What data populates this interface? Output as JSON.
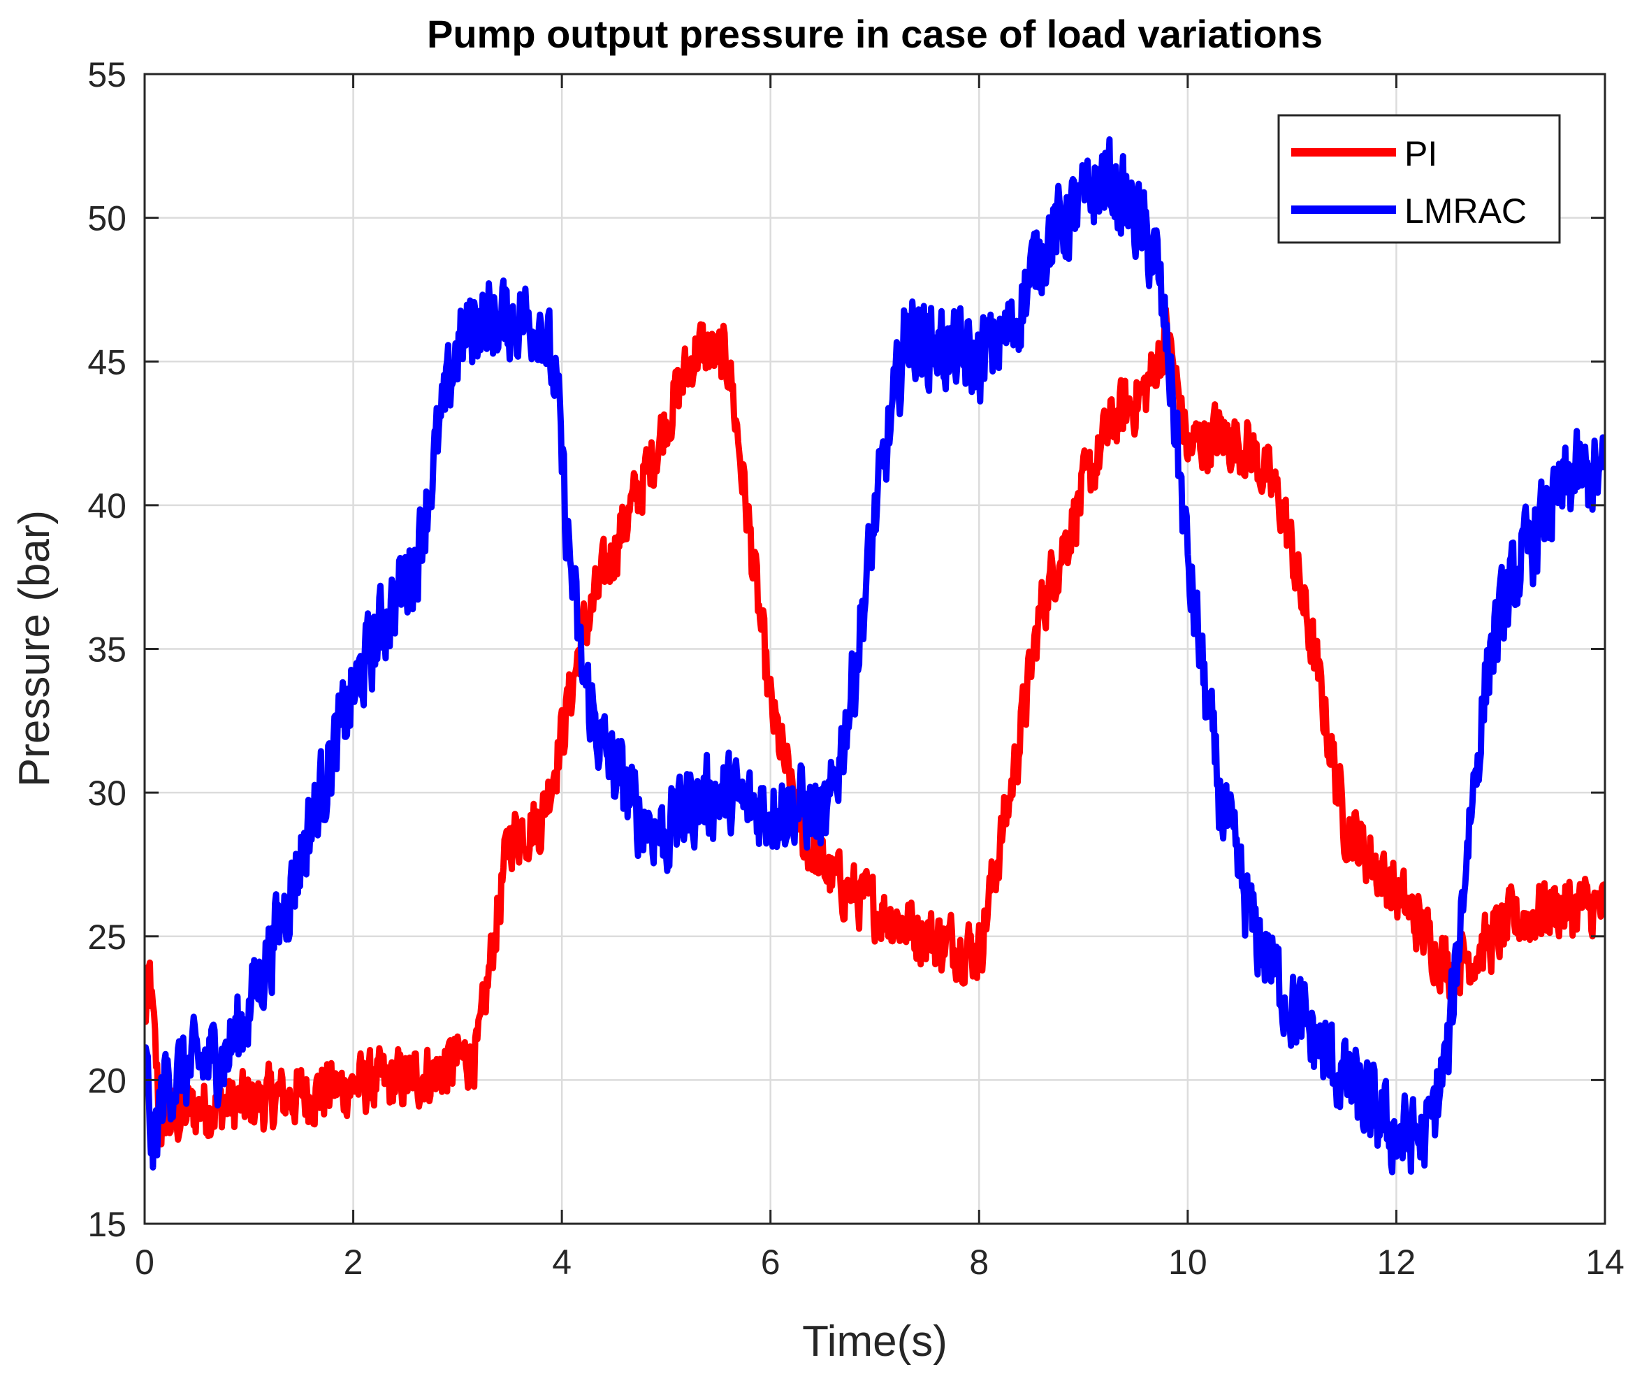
{
  "chart_data": {
    "type": "line",
    "title": "Pump output pressure in case of load variations",
    "xlabel": "Time(s)",
    "ylabel": "Pressure (bar)",
    "xlim": [
      0,
      14
    ],
    "ylim": [
      15,
      55
    ],
    "xticks": [
      0,
      2,
      4,
      6,
      8,
      10,
      12,
      14
    ],
    "yticks": [
      15,
      20,
      25,
      30,
      35,
      40,
      45,
      50,
      55
    ],
    "grid": true,
    "legend_position": "top-right",
    "series": [
      {
        "name": "PI",
        "color": "#ff0000",
        "noise_amplitude": 1.5,
        "x": [
          0,
          0.05,
          0.15,
          0.5,
          1.0,
          1.5,
          2.0,
          2.5,
          3.0,
          3.2,
          3.35,
          3.5,
          3.8,
          4.0,
          4.2,
          4.5,
          4.8,
          5.0,
          5.3,
          5.6,
          5.8,
          6.0,
          6.3,
          6.6,
          7.0,
          7.5,
          8.0,
          8.3,
          8.6,
          9.0,
          9.3,
          9.6,
          9.8,
          10.0,
          10.3,
          10.6,
          10.9,
          11.2,
          11.5,
          11.8,
          12.2,
          12.5,
          12.8,
          13.1,
          13.5,
          14.0
        ],
        "y": [
          22,
          23.5,
          18.5,
          19.0,
          19.2,
          19.5,
          19.8,
          20.0,
          20.6,
          21.0,
          25.0,
          28.5,
          29.0,
          32.0,
          35.5,
          38.5,
          41.0,
          43.0,
          45.5,
          45.0,
          39.0,
          33.0,
          28.5,
          27.0,
          26.0,
          25.0,
          24.5,
          30.0,
          36.5,
          40.5,
          43.0,
          44.0,
          46.0,
          42.0,
          42.5,
          42.0,
          40.0,
          35.0,
          29.0,
          27.5,
          25.5,
          24.0,
          24.5,
          25.5,
          26.0,
          26.0
        ]
      },
      {
        "name": "LMRAC",
        "color": "#0000ff",
        "noise_amplitude": 2.0,
        "x": [
          0,
          0.08,
          0.2,
          0.5,
          0.8,
          1.0,
          1.3,
          1.6,
          2.0,
          2.3,
          2.6,
          2.8,
          3.0,
          3.2,
          3.5,
          3.8,
          3.95,
          4.05,
          4.2,
          4.4,
          4.7,
          5.0,
          5.2,
          5.5,
          5.8,
          6.0,
          6.3,
          6.55,
          6.8,
          7.0,
          7.3,
          7.6,
          8.0,
          8.3,
          8.6,
          9.0,
          9.2,
          9.5,
          9.7,
          9.85,
          10.0,
          10.3,
          10.6,
          11.0,
          11.5,
          12.0,
          12.3,
          12.5,
          12.7,
          12.9,
          13.2,
          13.5,
          13.7,
          14.0
        ],
        "y": [
          21,
          17.5,
          20.0,
          20.5,
          21.0,
          22.5,
          25.5,
          29.0,
          33.5,
          36.0,
          38.0,
          42.0,
          45.5,
          46.5,
          46.5,
          46.5,
          44.0,
          39.0,
          34.0,
          31.5,
          29.5,
          28.5,
          29.5,
          30.0,
          29.5,
          29.5,
          29.5,
          29.0,
          34.0,
          39.5,
          46.0,
          45.5,
          45.0,
          46.0,
          49.0,
          50.5,
          51.5,
          50.0,
          48.5,
          44.0,
          38.0,
          30.0,
          25.5,
          22.5,
          20.0,
          18.0,
          18.0,
          21.0,
          29.0,
          35.0,
          38.0,
          40.0,
          41.0,
          41.0
        ]
      }
    ]
  }
}
